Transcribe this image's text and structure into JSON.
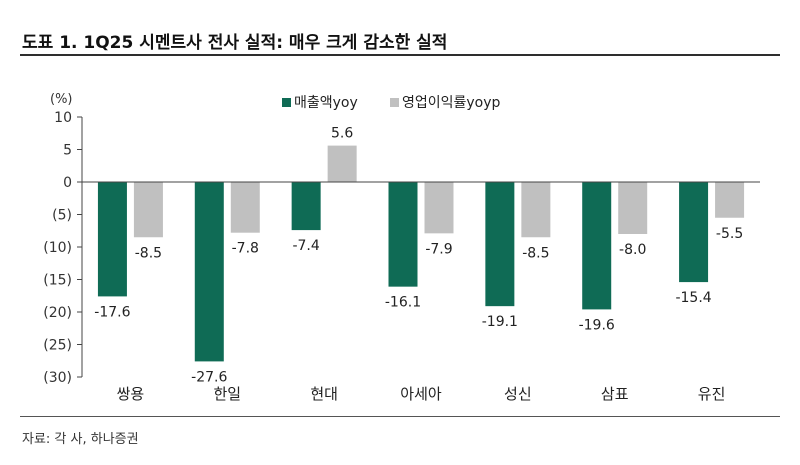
{
  "figure": {
    "title": "도표 1. 1Q25 시멘트사 전사 실적: 매우 크게 감소한 실적",
    "source": "자료: 각 사, 하나증권"
  },
  "colors": {
    "sales": "#0f6b55",
    "op_margin": "#c0c0c0"
  },
  "chart_data": {
    "type": "bar",
    "title": "1Q25 시멘트사 전사 실적: 매우 크게 감소한 실적",
    "xlabel": "",
    "ylabel": "(%)",
    "ylim": [
      -30,
      10
    ],
    "yticks": [
      10,
      5,
      0,
      -5,
      -10,
      -15,
      -20,
      -25,
      -30
    ],
    "ytick_labels": [
      "10",
      "5",
      "0",
      "(5)",
      "(10)",
      "(15)",
      "(20)",
      "(25)",
      "(30)"
    ],
    "categories": [
      "쌍용",
      "한일",
      "현대",
      "아세아",
      "성신",
      "삼표",
      "유진"
    ],
    "series": [
      {
        "name": "매출액yoy",
        "values": [
          -17.6,
          -27.6,
          -7.4,
          -16.1,
          -19.1,
          -19.6,
          -15.4
        ],
        "labels": [
          "-17.6",
          "-27.6",
          "-7.4",
          "-16.1",
          "-19.1",
          "-19.6",
          "-15.4"
        ]
      },
      {
        "name": "영업이익률yoyp",
        "values": [
          -8.5,
          -7.8,
          5.6,
          -7.9,
          -8.5,
          -8.0,
          -5.5
        ],
        "labels": [
          "-8.5",
          "-7.8",
          "5.6",
          "-7.9",
          "-8.5",
          "-8.0",
          "-5.5"
        ]
      }
    ],
    "legend": "top-center"
  }
}
